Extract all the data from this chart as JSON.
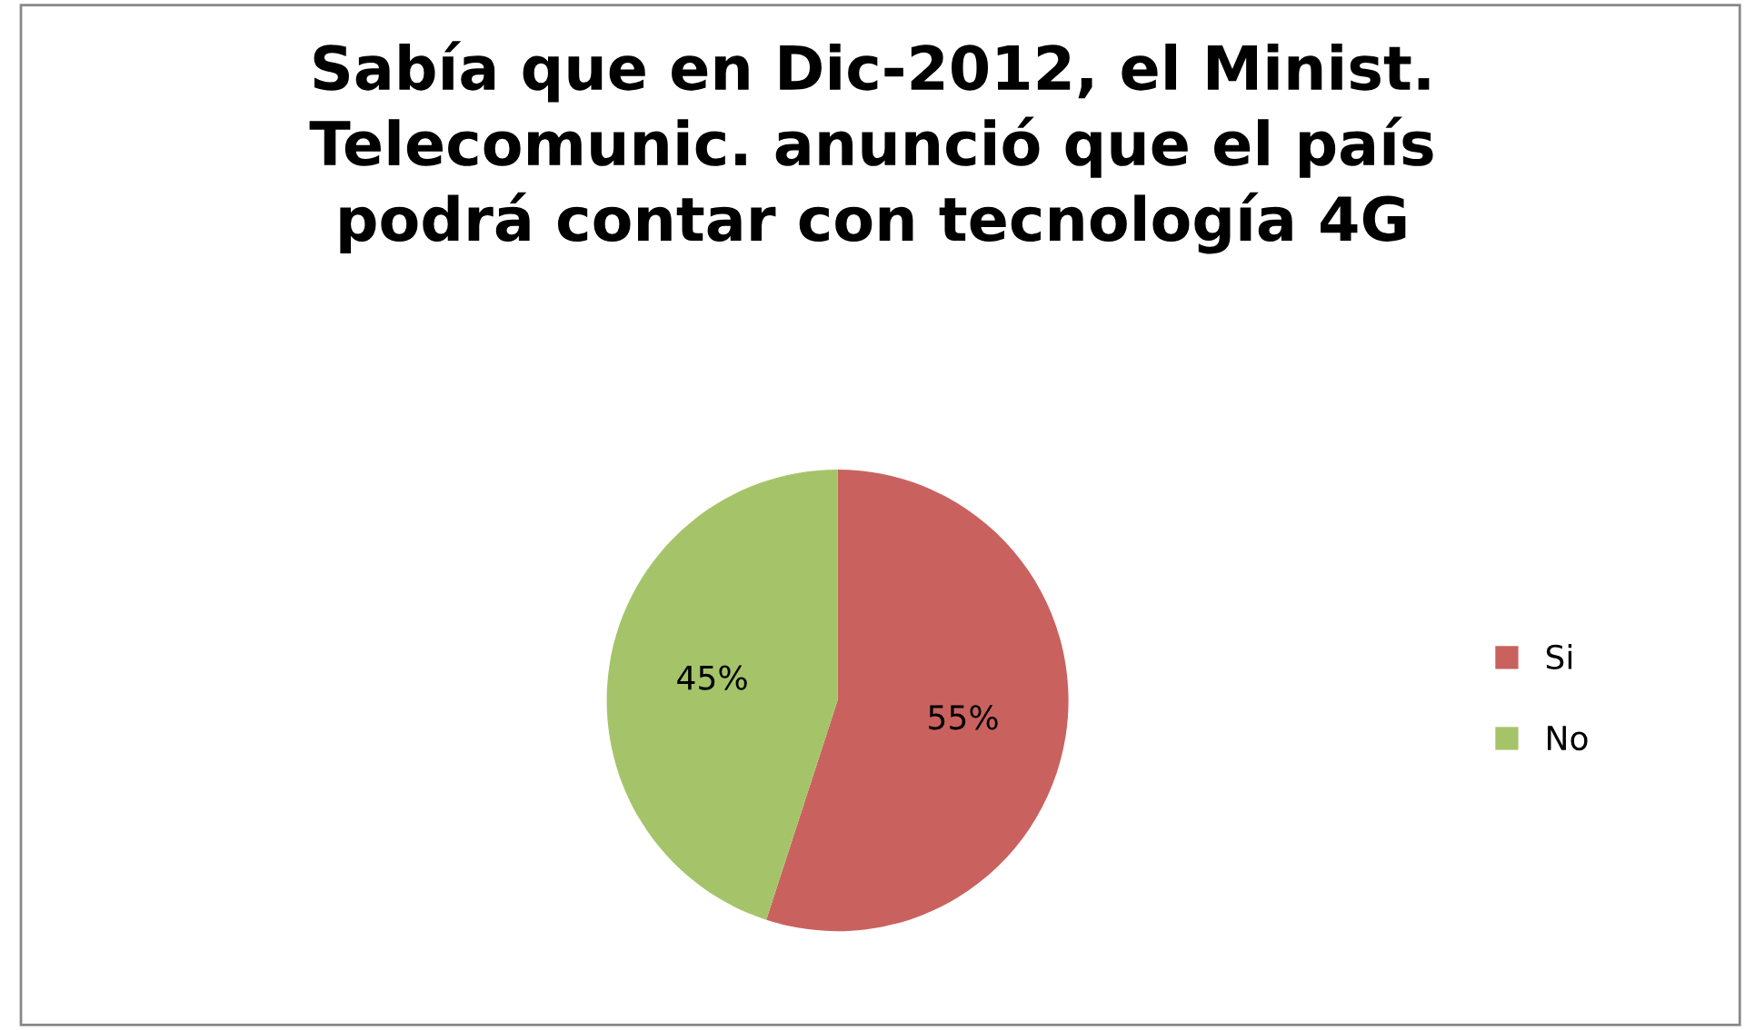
{
  "chart_data": {
    "type": "pie",
    "title": "Sabía que en Dic-2012, el Minist.\nTelecomunic. anunció que el país\npodrá contar con tecnología 4G",
    "categories": [
      "Si",
      "No"
    ],
    "values": [
      55,
      45
    ],
    "colors": [
      "#c9625f",
      "#a5c46a"
    ],
    "value_labels": [
      "55%",
      "45%"
    ],
    "legend": "right"
  }
}
